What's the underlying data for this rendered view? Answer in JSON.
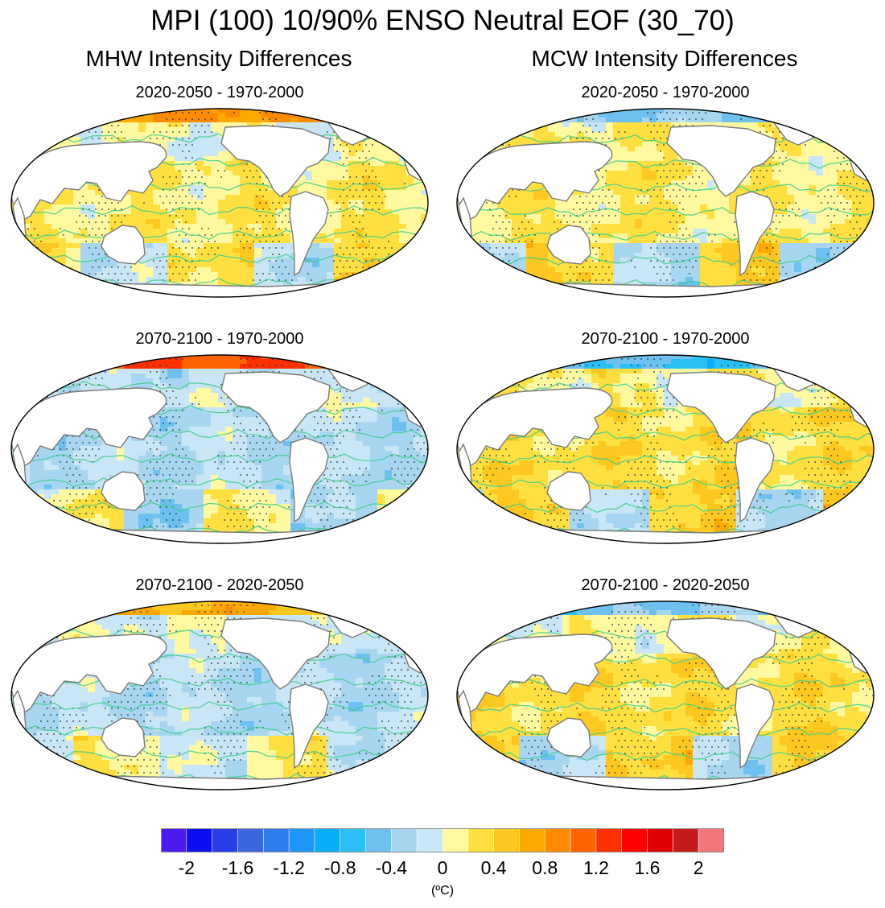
{
  "chart_data": {
    "type": "heatmap",
    "title": "MPI (100) 10/90% ENSO Neutral EOF (30_70)",
    "columns": [
      {
        "title": "MHW Intensity Differences",
        "panels": [
          {
            "title": "2020-2050 - 1970-2000",
            "arctic_anomaly": 0.8,
            "trop_mix": 0.2,
            "south_mix": 0.3
          },
          {
            "title": "2070-2100 - 1970-2000",
            "arctic_anomaly": 1.2,
            "trop_mix": -0.2,
            "south_mix": -0.3
          },
          {
            "title": "2070-2100 - 2020-2050",
            "arctic_anomaly": 0.6,
            "trop_mix": -0.2,
            "south_mix": 0.2
          }
        ]
      },
      {
        "title": "MCW Intensity Differences",
        "panels": [
          {
            "title": "2020-2050 - 1970-2000",
            "arctic_anomaly": -0.4,
            "trop_mix": 0.2,
            "south_mix": 0.4
          },
          {
            "title": "2070-2100 - 1970-2000",
            "arctic_anomaly": -0.6,
            "trop_mix": 0.3,
            "south_mix": 0.4
          },
          {
            "title": "2070-2100 - 2020-2050",
            "arctic_anomaly": -0.4,
            "trop_mix": 0.3,
            "south_mix": 0.4
          }
        ]
      }
    ],
    "colorbar": {
      "bins": [
        -2.2,
        -2.0,
        -1.8,
        -1.6,
        -1.4,
        -1.2,
        -1.0,
        -0.8,
        -0.6,
        -0.4,
        -0.2,
        0,
        0.2,
        0.4,
        0.6,
        0.8,
        1.0,
        1.2,
        1.4,
        1.6,
        1.8,
        2.0,
        2.2
      ],
      "colors": [
        "#4b1af0",
        "#0a0ef0",
        "#2a3ee6",
        "#3c66de",
        "#2f7ef0",
        "#1e96f6",
        "#0aaef8",
        "#2ac0f6",
        "#6ec0ee",
        "#a8d6f0",
        "#c8e6f6",
        "#fffaa0",
        "#ffe040",
        "#ffc820",
        "#ffa800",
        "#ff8c00",
        "#ff6400",
        "#ff3000",
        "#ff0000",
        "#dc0000",
        "#c41c1c",
        "#f07878"
      ],
      "tick_values": [
        -2,
        -1.6,
        -1.2,
        -0.8,
        -0.4,
        0,
        0.4,
        0.8,
        1.2,
        1.6,
        2
      ],
      "tick_labels": [
        "-2",
        "-1.6",
        "-1.2",
        "-0.8",
        "-0.4",
        "0",
        "0.4",
        "0.8",
        "1.2",
        "1.6",
        "2"
      ],
      "units": "(ºC)"
    },
    "contour_color": "#3ccc8c",
    "coast_color": "#7a7a7a",
    "land_color": "#ffffff",
    "stipple_color": "#203040"
  }
}
